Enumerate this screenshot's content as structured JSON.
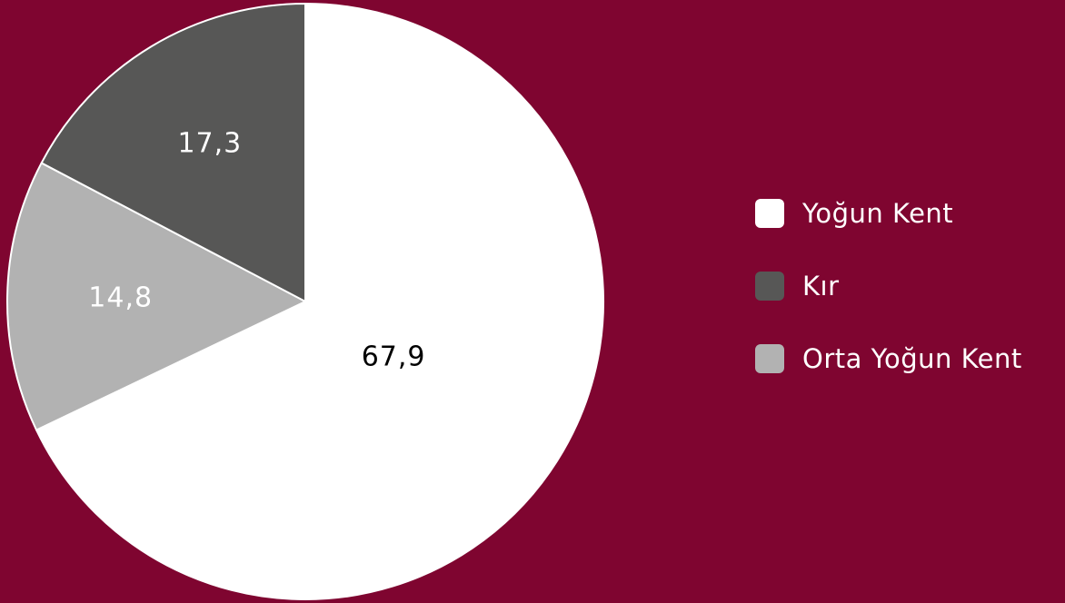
{
  "chart_data": {
    "type": "pie",
    "title": "",
    "slices": [
      {
        "label": "Yoğun Kent",
        "value": 67.9,
        "value_label": "67,9",
        "color": "#ffffff",
        "label_color": "#000000"
      },
      {
        "label": "Orta Yoğun Kent",
        "value": 14.8,
        "value_label": "14,8",
        "color": "#b2b2b2",
        "label_color": "#ffffff"
      },
      {
        "label": "Kır",
        "value": 17.3,
        "value_label": "17,3",
        "color": "#575756",
        "label_color": "#ffffff"
      }
    ],
    "legend": {
      "placement": "right",
      "items": [
        {
          "label": "Yoğun Kent",
          "color": "#ffffff"
        },
        {
          "label": "Kır",
          "color": "#575756"
        },
        {
          "label": "Orta Yoğun Kent",
          "color": "#b2b2b2"
        }
      ]
    },
    "background_color": "#7f0530",
    "slice_border_color": "#ffffff"
  }
}
